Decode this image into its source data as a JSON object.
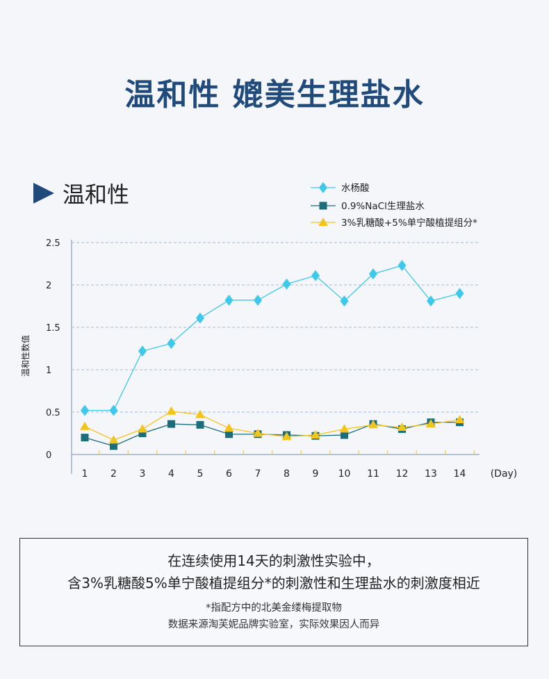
{
  "title": "温和性 媲美生理盐水",
  "section_label": "温和性",
  "note": {
    "line1": "在连续使用14天的刺激性实验中，",
    "line2": "含3%乳糖酸5%单宁酸植提组分*的刺激性和生理盐水的刺激度相近",
    "line3": "*指配方中的北美金缕梅提取物",
    "line4": "数据来源淘芙妮品牌实验室，实际效果因人而异"
  },
  "colors": {
    "salicylic": "#3ec8ea",
    "nacl": "#1b6d7a",
    "lactobionic": "#f3c51c",
    "grid": "#a9bcd0",
    "axis": "#9fb0c4"
  },
  "chart_data": {
    "type": "line",
    "ylabel": "温和性数值",
    "xunit": "(Day)",
    "categories": [
      "1",
      "2",
      "3",
      "4",
      "5",
      "6",
      "7",
      "8",
      "9",
      "10",
      "11",
      "12",
      "13",
      "14"
    ],
    "ylim": [
      0,
      2.5
    ],
    "yticks": [
      "0",
      "0.5",
      "1",
      "1.5",
      "2",
      "2.5"
    ],
    "grid": true,
    "legend_position": "top-right",
    "series": [
      {
        "name": "水杨酸",
        "marker": "diamond",
        "color": "#3ec8ea",
        "values": [
          0.52,
          0.52,
          1.22,
          1.31,
          1.61,
          1.82,
          1.82,
          2.01,
          2.11,
          1.81,
          2.13,
          2.23,
          1.81,
          1.9
        ]
      },
      {
        "name": "0.9%NaCl生理盐水",
        "marker": "square",
        "color": "#1b6d7a",
        "values": [
          0.2,
          0.1,
          0.25,
          0.36,
          0.35,
          0.24,
          0.24,
          0.23,
          0.22,
          0.23,
          0.36,
          0.3,
          0.38,
          0.38
        ]
      },
      {
        "name": "3%乳糖酸+5%单宁酸植提组分*",
        "marker": "triangle",
        "color": "#f3c51c",
        "values": [
          0.33,
          0.17,
          0.3,
          0.51,
          0.47,
          0.31,
          0.25,
          0.21,
          0.23,
          0.3,
          0.35,
          0.32,
          0.36,
          0.41
        ]
      }
    ]
  }
}
